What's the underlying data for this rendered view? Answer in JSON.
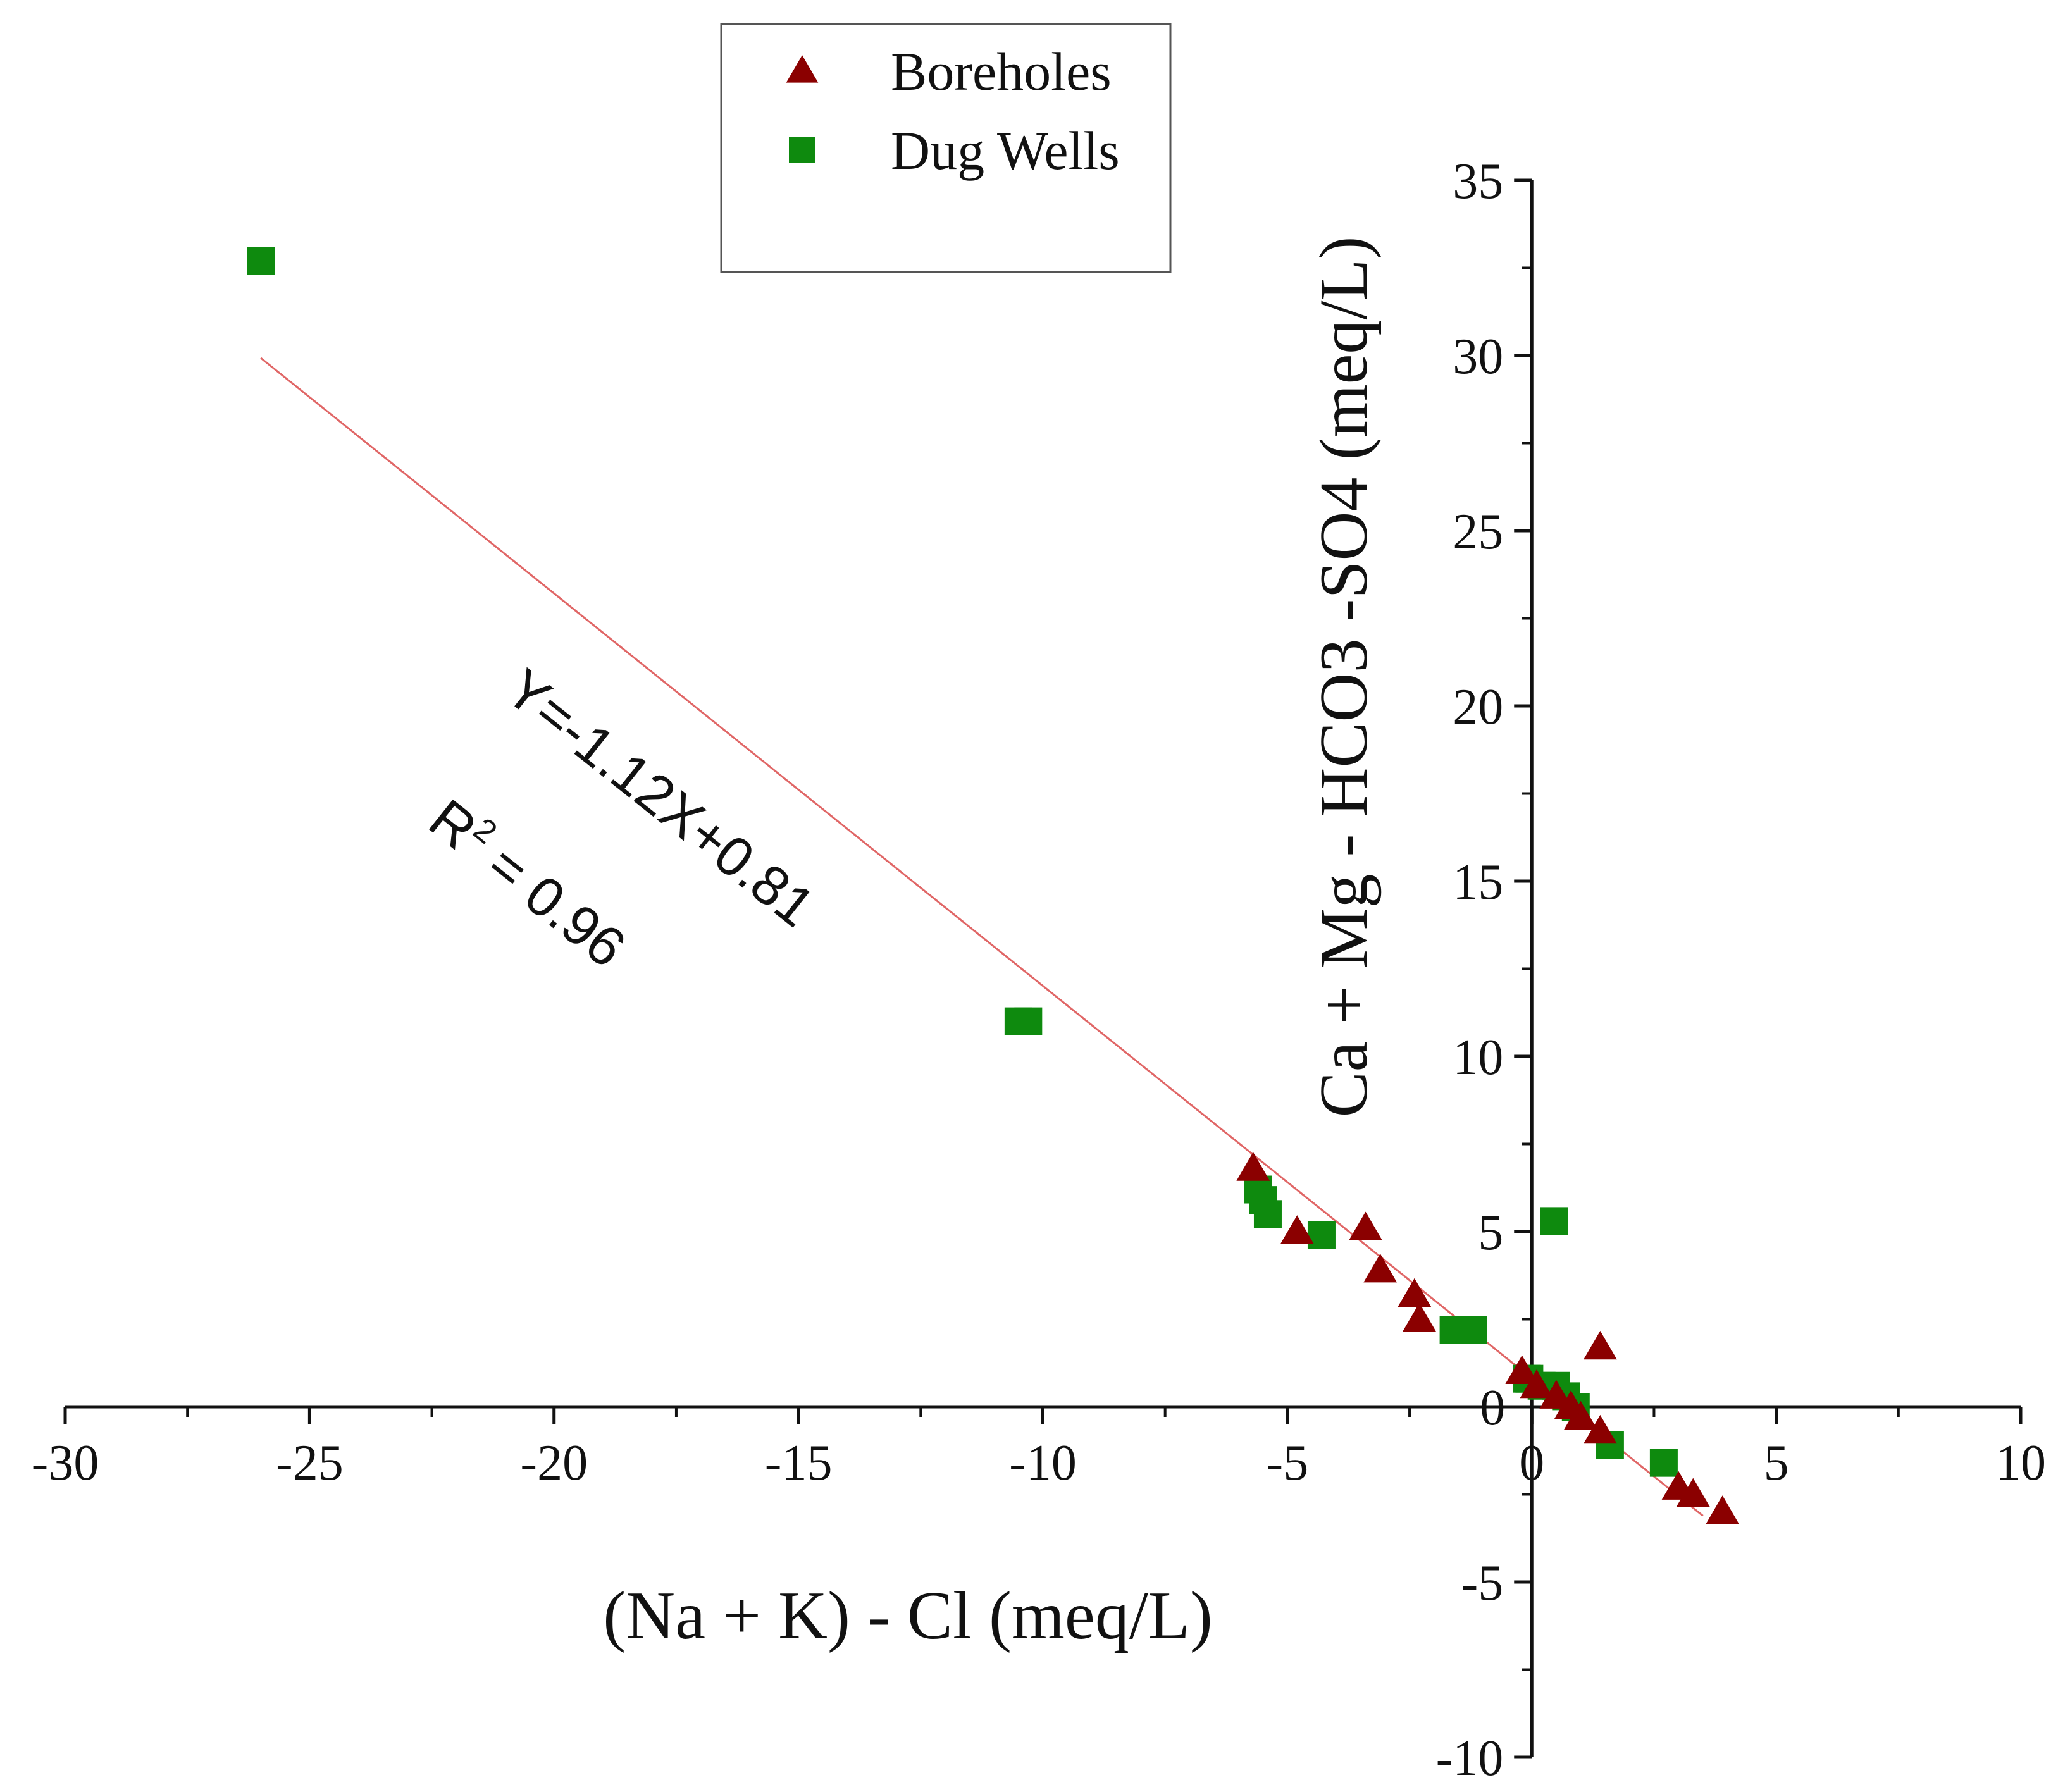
{
  "chart_data": {
    "type": "scatter",
    "xlabel": "(Na + K) - Cl (meq/L)",
    "ylabel": "Ca + Mg - HCO3 -SO4 (meq/L)",
    "xlim": [
      -30,
      10
    ],
    "ylim": [
      -10,
      35
    ],
    "x_ticks": [
      -30,
      -25,
      -20,
      -15,
      -10,
      -5,
      0,
      5,
      10
    ],
    "y_ticks": [
      -10,
      -5,
      0,
      5,
      10,
      15,
      20,
      25,
      30,
      35
    ],
    "x_tick_labels": [
      "-30",
      "-25",
      "-20",
      "-15",
      "-10",
      "-5",
      "0",
      "5",
      "10"
    ],
    "y_tick_labels": [
      "-10",
      "-5",
      "0",
      "5",
      "10",
      "15",
      "20",
      "25",
      "30",
      "35"
    ],
    "legend_position": "top-left",
    "series": [
      {
        "name": "Boreholes",
        "marker": "triangle",
        "color": "#8B0000",
        "points": [
          [
            -5.7,
            6.8
          ],
          [
            -4.8,
            5.0
          ],
          [
            -3.4,
            5.1
          ],
          [
            -3.1,
            3.9
          ],
          [
            -2.4,
            3.2
          ],
          [
            -2.3,
            2.5
          ],
          [
            -0.2,
            1.0
          ],
          [
            0.1,
            0.6
          ],
          [
            0.5,
            0.3
          ],
          [
            0.8,
            0.0
          ],
          [
            1.0,
            -0.3
          ],
          [
            1.4,
            1.7
          ],
          [
            1.4,
            -0.7
          ],
          [
            3.0,
            -2.3
          ],
          [
            3.3,
            -2.5
          ],
          [
            3.9,
            -3.0
          ]
        ]
      },
      {
        "name": "Dug Wells",
        "marker": "square",
        "color": "#0E8A0E",
        "points": [
          [
            -26.0,
            32.7
          ],
          [
            -10.5,
            11.0
          ],
          [
            -10.3,
            11.0
          ],
          [
            -5.6,
            6.2
          ],
          [
            -5.5,
            5.9
          ],
          [
            -5.4,
            5.5
          ],
          [
            -4.3,
            4.9
          ],
          [
            -1.6,
            2.2
          ],
          [
            -1.4,
            2.2
          ],
          [
            -1.2,
            2.2
          ],
          [
            -0.1,
            0.8
          ],
          [
            -0.05,
            0.8
          ],
          [
            0.2,
            0.6
          ],
          [
            0.5,
            0.6
          ],
          [
            0.7,
            0.3
          ],
          [
            0.9,
            0.0
          ],
          [
            1.6,
            -1.1
          ],
          [
            2.7,
            -1.6
          ],
          [
            0.45,
            5.3
          ]
        ]
      }
    ],
    "trendline": {
      "slope": -1.12,
      "intercept": 0.81,
      "x_range": [
        -26,
        3.5
      ],
      "color": "#E06666"
    },
    "annotations": {
      "equation": "Y=-1.12X+0.81",
      "r2_prefix": "R",
      "r2_sup": "2",
      "r2_value": " = 0.96"
    }
  }
}
